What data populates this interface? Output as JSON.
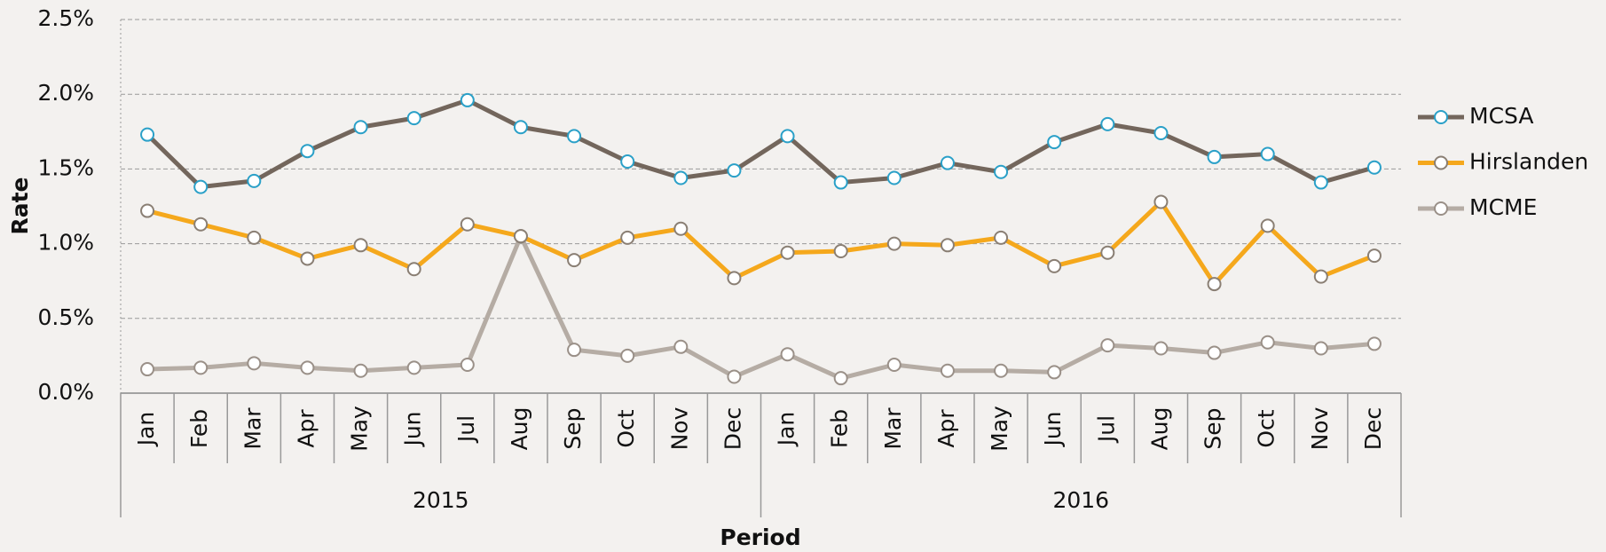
{
  "chart_data": {
    "type": "line",
    "x_label": "Period",
    "y_label": "Rate",
    "categories": [
      "Jan",
      "Feb",
      "Mar",
      "Apr",
      "May",
      "Jun",
      "Jul",
      "Aug",
      "Sep",
      "Oct",
      "Nov",
      "Dec",
      "Jan",
      "Feb",
      "Mar",
      "Apr",
      "May",
      "Jun",
      "Jul",
      "Aug",
      "Sep",
      "Oct",
      "Nov",
      "Dec"
    ],
    "category_groups": [
      "2015",
      "2016"
    ],
    "ylim": [
      0,
      2.5
    ],
    "yticks": [
      {
        "value": 0,
        "label": "0.0%"
      },
      {
        "value": 0.5,
        "label": "0.5%"
      },
      {
        "value": 1,
        "label": "1.0%"
      },
      {
        "value": 1.5,
        "label": "1.5%"
      },
      {
        "value": 2,
        "label": "2.0%"
      },
      {
        "value": 2.5,
        "label": "2.5%"
      }
    ],
    "grid": true,
    "legend": "right",
    "series": [
      {
        "name": "MCSA",
        "color": "#73665c",
        "marker_color": "#2aa0c8",
        "values": [
          1.73,
          1.38,
          1.42,
          1.62,
          1.78,
          1.84,
          1.96,
          1.78,
          1.72,
          1.55,
          1.44,
          1.49,
          1.72,
          1.41,
          1.44,
          1.54,
          1.48,
          1.68,
          1.8,
          1.74,
          1.58,
          1.6,
          1.41,
          1.51
        ]
      },
      {
        "name": "Hirslanden",
        "color": "#f5a81c",
        "marker_color": "#8a7f74",
        "values": [
          1.22,
          1.13,
          1.04,
          0.9,
          0.99,
          0.83,
          1.13,
          1.05,
          0.89,
          1.04,
          1.1,
          0.77,
          0.94,
          0.95,
          1.0,
          0.99,
          1.04,
          0.85,
          0.94,
          1.28,
          0.73,
          1.12,
          0.78,
          0.92
        ]
      },
      {
        "name": "MCME",
        "color": "#b5aca4",
        "marker_color": "#9a9088",
        "values": [
          0.16,
          0.17,
          0.2,
          0.17,
          0.15,
          0.17,
          0.19,
          1.05,
          0.29,
          0.25,
          0.31,
          0.11,
          0.26,
          0.1,
          0.19,
          0.15,
          0.15,
          0.14,
          0.32,
          0.3,
          0.27,
          0.34,
          0.3,
          0.33
        ]
      }
    ]
  }
}
